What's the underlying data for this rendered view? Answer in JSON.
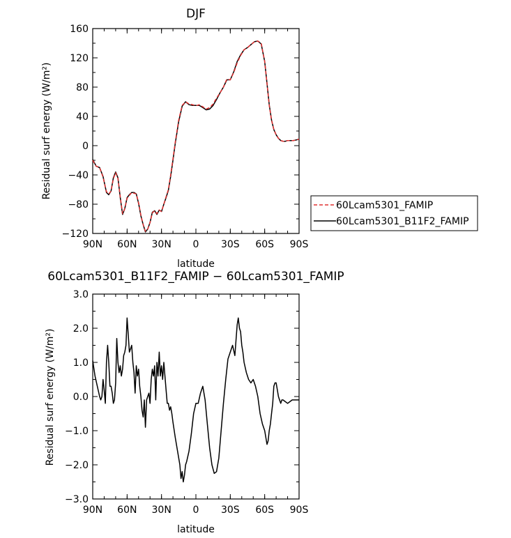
{
  "chart_data": [
    {
      "type": "line",
      "title": "DJF",
      "xlabel": "latitude",
      "ylabel": "Residual surf energy (W/m²)",
      "x_ticks": [
        "90N",
        "60N",
        "30N",
        "0",
        "30S",
        "60S",
        "90S"
      ],
      "y_ticks": [
        "160",
        "120",
        "80",
        "40",
        "0",
        "−40",
        "−80",
        "−120"
      ],
      "xlim": [
        -90,
        90
      ],
      "ylim": [
        -120,
        160
      ],
      "grid": false,
      "legend_position": "right-middle",
      "series": [
        {
          "name": "60Lcam5301_FAMIP",
          "color": "#e03030",
          "dash": "dashed",
          "x": [
            -90,
            -87,
            -84,
            -81,
            -78,
            -76,
            -74,
            -72,
            -70,
            -68,
            -66,
            -64,
            -62,
            -60,
            -58,
            -56,
            -54,
            -52,
            -50,
            -48,
            -46,
            -44,
            -42,
            -40,
            -38,
            -36,
            -34,
            -32,
            -30,
            -28,
            -26,
            -24,
            -22,
            -20,
            -18,
            -15,
            -12,
            -9,
            -6,
            -3,
            -1,
            1,
            3,
            6,
            9,
            12,
            15,
            18,
            21,
            24,
            27,
            30,
            33,
            36,
            39,
            42,
            45,
            48,
            51,
            54,
            57,
            60,
            62,
            64,
            66,
            68,
            70,
            72,
            74,
            76,
            78,
            80,
            82,
            85,
            88,
            90
          ],
          "y": [
            -20,
            -28,
            -30,
            -43,
            -63,
            -66,
            -62,
            -45,
            -37,
            -45,
            -70,
            -93,
            -86,
            -72,
            -68,
            -64,
            -65,
            -66,
            -78,
            -95,
            -108,
            -117,
            -114,
            -105,
            -92,
            -89,
            -93,
            -88,
            -90,
            -80,
            -70,
            -60,
            -40,
            -18,
            5,
            35,
            55,
            60,
            57,
            56,
            55,
            55,
            56,
            53,
            50,
            52,
            57,
            65,
            72,
            80,
            91,
            90,
            100,
            113,
            123,
            131,
            134,
            138,
            142,
            143,
            140,
            115,
            85,
            55,
            35,
            22,
            15,
            10,
            7,
            6,
            6,
            7,
            7,
            7,
            8,
            9
          ]
        },
        {
          "name": "60Lcam5301_B11F2_FAMIP",
          "color": "#000000",
          "dash": "solid",
          "x": [
            -90,
            -87,
            -84,
            -81,
            -78,
            -76,
            -74,
            -72,
            -70,
            -68,
            -66,
            -64,
            -62,
            -60,
            -58,
            -56,
            -54,
            -52,
            -50,
            -48,
            -46,
            -44,
            -42,
            -40,
            -38,
            -36,
            -34,
            -32,
            -30,
            -28,
            -26,
            -24,
            -22,
            -20,
            -18,
            -15,
            -12,
            -9,
            -6,
            -3,
            -1,
            1,
            3,
            6,
            9,
            12,
            15,
            18,
            21,
            24,
            27,
            30,
            33,
            36,
            39,
            42,
            45,
            48,
            51,
            54,
            57,
            60,
            62,
            64,
            66,
            68,
            70,
            72,
            74,
            76,
            78,
            80,
            82,
            85,
            88,
            90
          ],
          "y": [
            -19,
            -28,
            -30,
            -42,
            -64,
            -67,
            -62,
            -44,
            -36,
            -44,
            -71,
            -94,
            -86,
            -71,
            -67,
            -64,
            -64,
            -66,
            -79,
            -96,
            -108,
            -118,
            -114,
            -105,
            -91,
            -89,
            -94,
            -88,
            -90,
            -80,
            -71,
            -61,
            -42,
            -20,
            3,
            33,
            54,
            60,
            56,
            55,
            55,
            55,
            55,
            52,
            49,
            50,
            55,
            63,
            72,
            80,
            90,
            90,
            101,
            115,
            124,
            131,
            134,
            138,
            142,
            143,
            139,
            115,
            85,
            56,
            35,
            22,
            15,
            10,
            7,
            6,
            6,
            7,
            7,
            7,
            8,
            9
          ]
        }
      ]
    },
    {
      "type": "line",
      "title": "60Lcam5301_B11F2_FAMIP − 60Lcam5301_FAMIP",
      "xlabel": "latitude",
      "ylabel": "Residual surf energy (W/m²)",
      "x_ticks": [
        "90N",
        "60N",
        "30N",
        "0",
        "30S",
        "60S",
        "90S"
      ],
      "y_ticks": [
        "3.0",
        "2.0",
        "1.0",
        "0.0",
        "−1.0",
        "−2.0",
        "−3.0"
      ],
      "xlim": [
        -90,
        90
      ],
      "ylim": [
        -3,
        3
      ],
      "grid": false,
      "series": [
        {
          "color": "#000000",
          "dash": "solid",
          "x": [
            -90,
            -88,
            -86,
            -84,
            -83,
            -82,
            -81,
            -80,
            -79,
            -78,
            -77,
            -76,
            -75,
            -74,
            -73,
            -72,
            -71,
            -70,
            -69,
            -68,
            -67,
            -66,
            -65,
            -64,
            -63,
            -62,
            -61,
            -60,
            -59,
            -58,
            -57,
            -56,
            -55,
            -54,
            -53,
            -52,
            -51,
            -50,
            -49,
            -48,
            -47,
            -46,
            -45,
            -44,
            -43,
            -42,
            -41,
            -40,
            -39,
            -38,
            -37,
            -36,
            -35,
            -34,
            -33,
            -32,
            -31,
            -30,
            -29,
            -28,
            -27,
            -26,
            -25,
            -24,
            -23,
            -22,
            -21,
            -20,
            -18,
            -16,
            -14,
            -13,
            -12,
            -11,
            -10,
            -9,
            -8,
            -6,
            -4,
            -2,
            0,
            2,
            4,
            6,
            8,
            10,
            12,
            14,
            16,
            18,
            20,
            22,
            24,
            26,
            28,
            30,
            32,
            34,
            36,
            37,
            38,
            39,
            40,
            41,
            42,
            44,
            46,
            48,
            50,
            52,
            54,
            56,
            58,
            60,
            62,
            63,
            64,
            65,
            66,
            67,
            68,
            69,
            70,
            71,
            72,
            73,
            74,
            75,
            76,
            78,
            80,
            82,
            84,
            86,
            88,
            90
          ],
          "y": [
            1.05,
            0.6,
            0.3,
            0.0,
            -0.1,
            0.0,
            0.5,
            0.2,
            -0.2,
            1.0,
            1.5,
            1.0,
            0.3,
            0.3,
            0.1,
            -0.2,
            -0.1,
            0.4,
            1.7,
            1.0,
            0.7,
            0.9,
            0.6,
            0.8,
            1.2,
            1.3,
            1.5,
            2.3,
            1.8,
            1.3,
            1.4,
            1.5,
            1.0,
            0.7,
            0.1,
            0.9,
            0.6,
            0.8,
            0.3,
            0.0,
            -0.4,
            -0.6,
            -0.1,
            -0.9,
            -0.1,
            0.0,
            0.1,
            -0.2,
            0.5,
            0.8,
            0.6,
            0.9,
            -0.1,
            1.0,
            0.6,
            1.3,
            0.6,
            0.9,
            0.5,
            1.0,
            0.6,
            0.2,
            -0.2,
            -0.2,
            -0.4,
            -0.3,
            -0.5,
            -0.75,
            -1.2,
            -1.6,
            -2.0,
            -2.4,
            -2.2,
            -2.5,
            -2.3,
            -2.0,
            -1.9,
            -1.6,
            -1.1,
            -0.5,
            -0.2,
            -0.2,
            0.1,
            0.3,
            -0.1,
            -0.8,
            -1.5,
            -2.0,
            -2.25,
            -2.2,
            -1.8,
            -1.0,
            -0.2,
            0.5,
            1.1,
            1.3,
            1.5,
            1.2,
            2.1,
            2.3,
            2.0,
            1.9,
            1.5,
            1.3,
            1.0,
            0.7,
            0.5,
            0.4,
            0.5,
            0.3,
            0.0,
            -0.5,
            -0.8,
            -1.0,
            -1.4,
            -1.3,
            -1.0,
            -0.8,
            -0.5,
            -0.2,
            0.3,
            0.4,
            0.4,
            0.2,
            0.0,
            -0.1,
            -0.2,
            -0.1,
            -0.1,
            -0.15,
            -0.2,
            -0.15,
            -0.1,
            -0.1,
            -0.1,
            -0.1
          ]
        }
      ]
    }
  ]
}
